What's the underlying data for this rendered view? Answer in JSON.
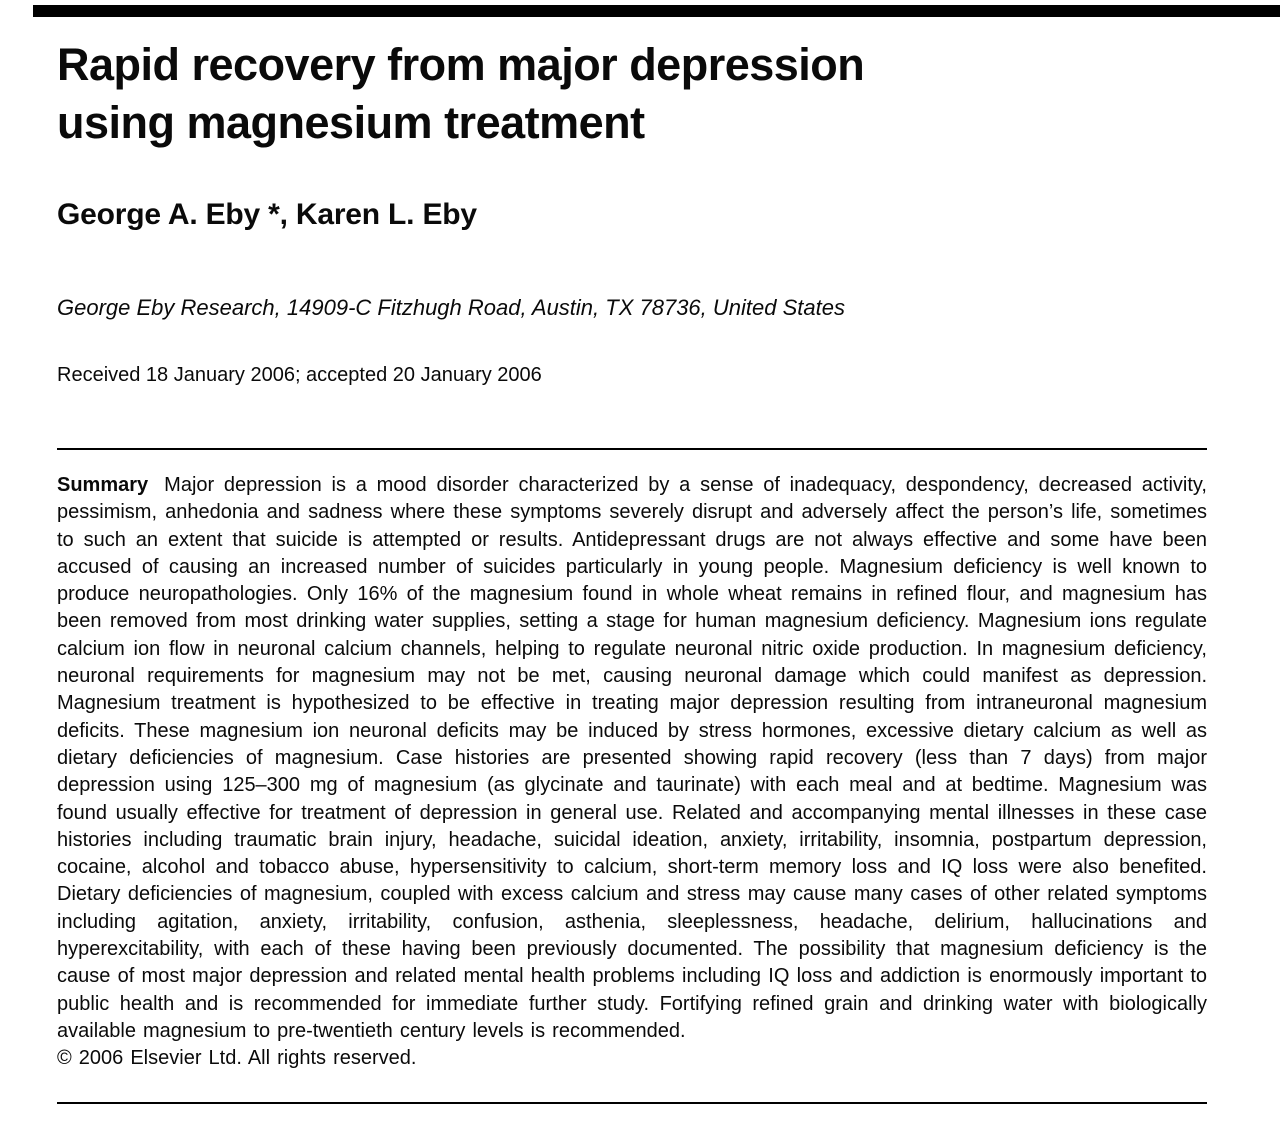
{
  "page": {
    "top_bar_color": "#000000",
    "background_color": "#ffffff",
    "text_color": "#0a0a0a"
  },
  "paper": {
    "title_lines": [
      "Rapid recovery from major depression",
      "using magnesium treatment"
    ],
    "authors": "George A. Eby *, Karen L. Eby",
    "affiliation": "George Eby Research, 14909-C Fitzhugh Road, Austin, TX 78736, United States",
    "received": "Received 18 January 2006; accepted 20 January 2006",
    "summary_label": "Summary",
    "summary_text": "Major depression is a mood disorder characterized by a sense of inadequacy, despondency, decreased activity, pessimism, anhedonia and sadness where these symptoms severely disrupt and adversely affect the person’s life, sometimes to such an extent that suicide is attempted or results. Antidepressant drugs are not always effective and some have been accused of causing an increased number of suicides particularly in young people. Magnesium deficiency is well known to produce neuropathologies. Only 16% of the magnesium found in whole wheat remains in refined flour, and magnesium has been removed from most drinking water supplies, setting a stage for human magnesium deficiency. Magnesium ions regulate calcium ion flow in neuronal calcium channels, helping to regulate neuronal nitric oxide production. In magnesium deficiency, neuronal requirements for magnesium may not be met, causing neuronal damage which could manifest as depression. Magnesium treatment is hypothesized to be effective in treating major depression resulting from intraneuronal magnesium deficits. These magnesium ion neuronal deficits may be induced by stress hormones, excessive dietary calcium as well as dietary deficiencies of magnesium. Case histories are presented showing rapid recovery (less than 7 days) from major depression using 125–300 mg of magnesium (as glycinate and taurinate) with each meal and at bedtime. Magnesium was found usually effective for treatment of depression in general use. Related and accompanying mental illnesses in these case histories including traumatic brain injury, headache, suicidal ideation, anxiety, irritability, insomnia, postpartum depression, cocaine, alcohol and tobacco abuse, hypersensitivity to calcium, short-term memory loss and IQ loss were also benefited. Dietary deficiencies of magnesium, coupled with excess calcium and stress may cause many cases of other related symptoms including agitation, anxiety, irritability, confusion, asthenia, sleeplessness, headache, delirium, hallucinations and hyperexcitability, with each of these having been previously documented. The possibility that magnesium deficiency is the cause of most major depression and related mental health problems including IQ loss and addiction is enormously important to public health and is recommended for immediate further study. Fortifying refined grain and drinking water with biologically available magnesium to pre-twentieth century levels is recommended.",
    "copyright": "© 2006 Elsevier Ltd. All rights reserved."
  }
}
